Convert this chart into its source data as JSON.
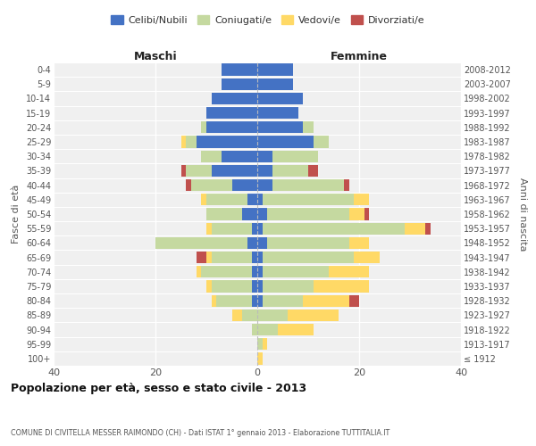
{
  "age_groups": [
    "100+",
    "95-99",
    "90-94",
    "85-89",
    "80-84",
    "75-79",
    "70-74",
    "65-69",
    "60-64",
    "55-59",
    "50-54",
    "45-49",
    "40-44",
    "35-39",
    "30-34",
    "25-29",
    "20-24",
    "15-19",
    "10-14",
    "5-9",
    "0-4"
  ],
  "birth_years": [
    "≤ 1912",
    "1913-1917",
    "1918-1922",
    "1923-1927",
    "1928-1932",
    "1933-1937",
    "1938-1942",
    "1943-1947",
    "1948-1952",
    "1953-1957",
    "1958-1962",
    "1963-1967",
    "1968-1972",
    "1973-1977",
    "1978-1982",
    "1983-1987",
    "1988-1992",
    "1993-1997",
    "1998-2002",
    "2003-2007",
    "2008-2012"
  ],
  "maschi": {
    "celibi": [
      0,
      0,
      0,
      0,
      1,
      1,
      1,
      1,
      2,
      1,
      3,
      2,
      5,
      9,
      7,
      12,
      10,
      10,
      9,
      7,
      7
    ],
    "coniugati": [
      0,
      0,
      1,
      3,
      7,
      8,
      10,
      8,
      18,
      8,
      7,
      8,
      8,
      5,
      4,
      2,
      1,
      0,
      0,
      0,
      0
    ],
    "vedovi": [
      0,
      0,
      0,
      2,
      1,
      1,
      1,
      1,
      0,
      1,
      0,
      1,
      0,
      0,
      0,
      1,
      0,
      0,
      0,
      0,
      0
    ],
    "divorziati": [
      0,
      0,
      0,
      0,
      0,
      0,
      0,
      2,
      0,
      0,
      0,
      0,
      1,
      1,
      0,
      0,
      0,
      0,
      0,
      0,
      0
    ]
  },
  "femmine": {
    "nubili": [
      0,
      0,
      0,
      0,
      1,
      1,
      1,
      1,
      2,
      1,
      2,
      1,
      3,
      3,
      3,
      11,
      9,
      8,
      9,
      7,
      7
    ],
    "coniugate": [
      0,
      1,
      4,
      6,
      8,
      10,
      13,
      18,
      16,
      28,
      16,
      18,
      14,
      7,
      9,
      3,
      2,
      0,
      0,
      0,
      0
    ],
    "vedove": [
      1,
      1,
      7,
      10,
      9,
      11,
      8,
      5,
      4,
      4,
      3,
      3,
      0,
      0,
      0,
      0,
      0,
      0,
      0,
      0,
      0
    ],
    "divorziate": [
      0,
      0,
      0,
      0,
      2,
      0,
      0,
      0,
      0,
      1,
      1,
      0,
      1,
      2,
      0,
      0,
      0,
      0,
      0,
      0,
      0
    ]
  },
  "colors": {
    "celibi_nubili": "#4472C4",
    "coniugati": "#C5D9A0",
    "vedovi": "#FFD966",
    "divorziati": "#C0504D"
  },
  "xlim": 40,
  "title": "Popolazione per età, sesso e stato civile - 2013",
  "subtitle": "COMUNE DI CIVITELLA MESSER RAIMONDO (CH) - Dati ISTAT 1° gennaio 2013 - Elaborazione TUTTITALIA.IT",
  "xlabel_left": "Maschi",
  "xlabel_right": "Femmine",
  "ylabel_left": "Fasce di età",
  "ylabel_right": "Anni di nascita",
  "bg_color": "#f0f0f0",
  "legend_labels": [
    "Celibi/Nubili",
    "Coniugati/e",
    "Vedovi/e",
    "Divorziati/e"
  ]
}
